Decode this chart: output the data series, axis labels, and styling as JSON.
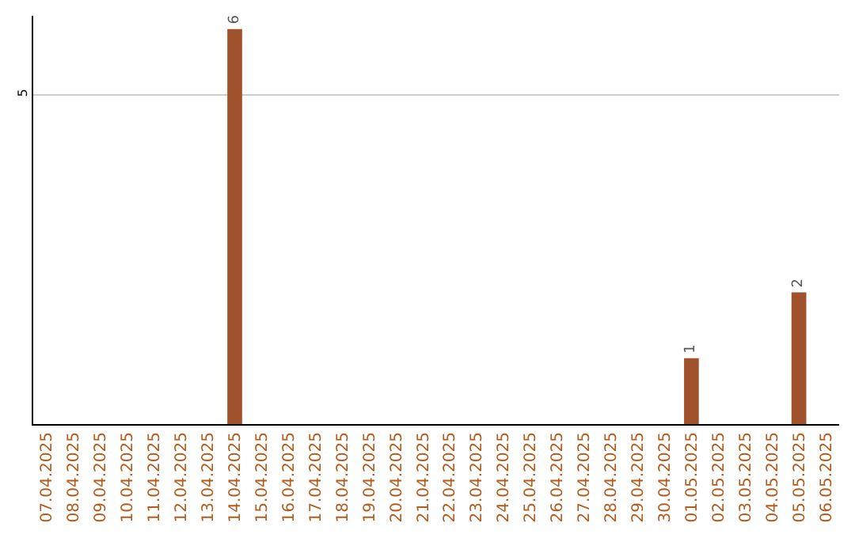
{
  "chart_data": {
    "type": "bar",
    "categories": [
      "07.04.2025",
      "08.04.2025",
      "09.04.2025",
      "10.04.2025",
      "11.04.2025",
      "12.04.2025",
      "13.04.2025",
      "14.04.2025",
      "15.04.2025",
      "16.04.2025",
      "17.04.2025",
      "18.04.2025",
      "19.04.2025",
      "20.04.2025",
      "21.04.2025",
      "22.04.2025",
      "23.04.2025",
      "24.04.2025",
      "25.04.2025",
      "26.04.2025",
      "27.04.2025",
      "28.04.2025",
      "29.04.2025",
      "30.04.2025",
      "01.05.2025",
      "02.05.2025",
      "03.05.2025",
      "04.05.2025",
      "05.05.2025",
      "06.05.2025"
    ],
    "values": [
      0,
      0,
      0,
      0,
      0,
      0,
      0,
      6,
      0,
      0,
      0,
      0,
      0,
      0,
      0,
      0,
      0,
      0,
      0,
      0,
      0,
      0,
      0,
      0,
      1,
      0,
      0,
      0,
      2,
      0
    ],
    "value_labels": [
      null,
      null,
      null,
      null,
      null,
      null,
      null,
      "6",
      null,
      null,
      null,
      null,
      null,
      null,
      null,
      null,
      null,
      null,
      null,
      null,
      null,
      null,
      null,
      null,
      "1",
      null,
      null,
      null,
      "2",
      null
    ],
    "color": "#a0522d",
    "ylim": [
      0,
      6.2
    ],
    "yticks": [
      5
    ],
    "grid": "y",
    "legend": false
  }
}
